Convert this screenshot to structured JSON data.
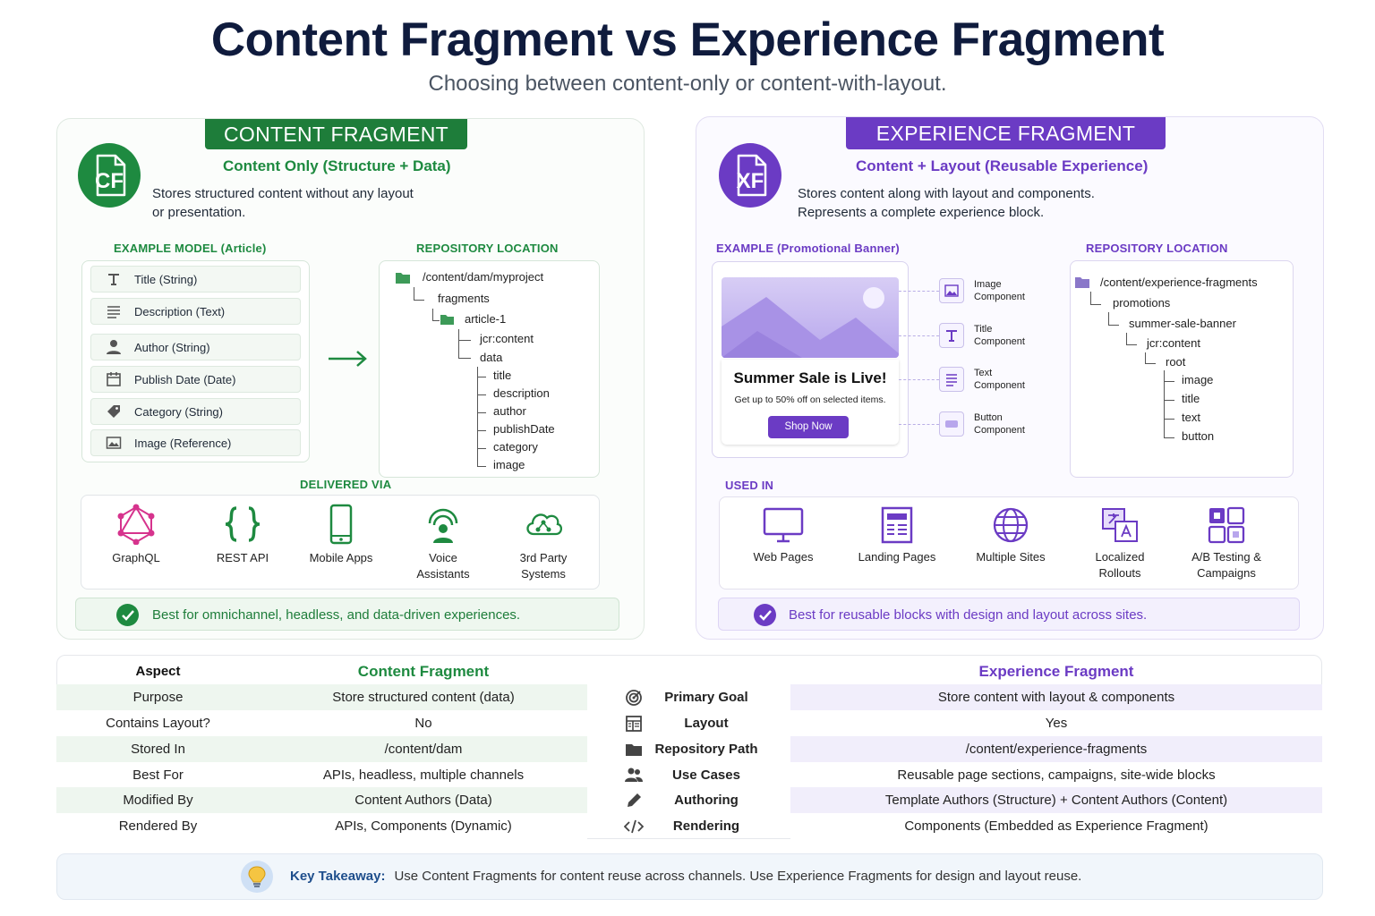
{
  "header": {
    "title": "Content Fragment vs Experience Fragment",
    "subtitle": "Choosing between content-only or content-with-layout."
  },
  "content_fragment": {
    "banner": "CONTENT FRAGMENT",
    "logo_text": "CF",
    "subtitle": "Content Only (Structure + Data)",
    "description": "Stores structured content without any layout or presentation.",
    "example_heading": "EXAMPLE MODEL (Article)",
    "fields": [
      {
        "label": "Title (String)",
        "icon": "text-type-icon"
      },
      {
        "label": "Description (Text)",
        "icon": "lines-icon"
      },
      {
        "label": "Author (String)",
        "icon": "person-icon"
      },
      {
        "label": "Publish Date (Date)",
        "icon": "calendar-icon"
      },
      {
        "label": "Category (String)",
        "icon": "tag-icon"
      },
      {
        "label": "Image (Reference)",
        "icon": "image-icon"
      }
    ],
    "repo_heading": "REPOSITORY LOCATION",
    "repo_tree": [
      "/content/dam/myproject",
      "fragments",
      "article-1",
      "jcr:content",
      "data",
      "title",
      "description",
      "author",
      "publishDate",
      "category",
      "image"
    ],
    "delivered_heading": "DELIVERED VIA",
    "delivered": [
      {
        "label": "GraphQL",
        "icon": "graphql-icon"
      },
      {
        "label": "REST API",
        "icon": "braces-icon"
      },
      {
        "label": "Mobile Apps",
        "icon": "mobile-icon"
      },
      {
        "label": "Voice Assistants",
        "icon": "voice-icon"
      },
      {
        "label": "3rd Party Systems",
        "icon": "cloud-share-icon"
      }
    ],
    "best": "Best for omnichannel, headless, and data-driven experiences.",
    "accent": "#1e8a40"
  },
  "experience_fragment": {
    "banner": "EXPERIENCE FRAGMENT",
    "logo_text": "XF",
    "subtitle": "Content + Layout (Reusable Experience)",
    "description": "Stores content along with layout and components. Represents a complete experience block.",
    "example_heading": "EXAMPLE (Promotional Banner)",
    "promo": {
      "title": "Summer Sale is Live!",
      "text": "Get up to 50% off on selected items.",
      "button": "Shop Now"
    },
    "components": [
      {
        "name": "Image",
        "type": "Component",
        "icon": "image-icon"
      },
      {
        "name": "Title",
        "type": "Component",
        "icon": "text-type-icon"
      },
      {
        "name": "Text",
        "type": "Component",
        "icon": "lines-icon"
      },
      {
        "name": "Button",
        "type": "Component",
        "icon": "button-icon"
      }
    ],
    "repo_heading": "REPOSITORY LOCATION",
    "repo_tree": [
      "/content/experience-fragments",
      "promotions",
      "summer-sale-banner",
      "jcr:content",
      "root",
      "image",
      "title",
      "text",
      "button"
    ],
    "used_heading": "USED IN",
    "used_in": [
      {
        "label": "Web Pages",
        "icon": "monitor-icon"
      },
      {
        "label": "Landing Pages",
        "icon": "page-layout-icon"
      },
      {
        "label": "Multiple Sites",
        "icon": "globe-icon"
      },
      {
        "label": "Localized Rollouts",
        "icon": "translate-icon"
      },
      {
        "label": "A/B Testing & Campaigns",
        "icon": "grid-blocks-icon"
      }
    ],
    "best": "Best for reusable blocks with design and layout across sites.",
    "accent": "#6b3bc4"
  },
  "comparison": {
    "headers": {
      "aspect": "Aspect",
      "cf": "Content Fragment",
      "xf": "Experience Fragment"
    },
    "rows": [
      {
        "aspect": "Purpose",
        "cf": "Store structured content (data)",
        "xf_aspect": "Primary Goal",
        "xf_icon": "target-icon",
        "xf": "Store content with layout & components"
      },
      {
        "aspect": "Contains Layout?",
        "cf": "No",
        "xf_aspect": "Layout",
        "xf_icon": "layout-icon",
        "xf": "Yes"
      },
      {
        "aspect": "Stored In",
        "cf": "/content/dam",
        "xf_aspect": "Repository Path",
        "xf_icon": "folder-icon",
        "xf": "/content/experience-fragments"
      },
      {
        "aspect": "Best For",
        "cf": "APIs, headless, multiple channels",
        "xf_aspect": "Use Cases",
        "xf_icon": "users-icon",
        "xf": "Reusable page sections, campaigns, site-wide blocks"
      },
      {
        "aspect": "Modified By",
        "cf": "Content Authors (Data)",
        "xf_aspect": "Authoring",
        "xf_icon": "pencil-icon",
        "xf": "Template Authors (Structure) + Content Authors (Content)"
      },
      {
        "aspect": "Rendered By",
        "cf": "APIs, Components (Dynamic)",
        "xf_aspect": "Rendering",
        "xf_icon": "code-icon",
        "xf": "Components (Embedded as Experience Fragment)"
      }
    ]
  },
  "takeaway": {
    "label": "Key Takeaway:",
    "text": "Use Content Fragments for content reuse across channels. Use Experience Fragments for design and layout reuse."
  }
}
